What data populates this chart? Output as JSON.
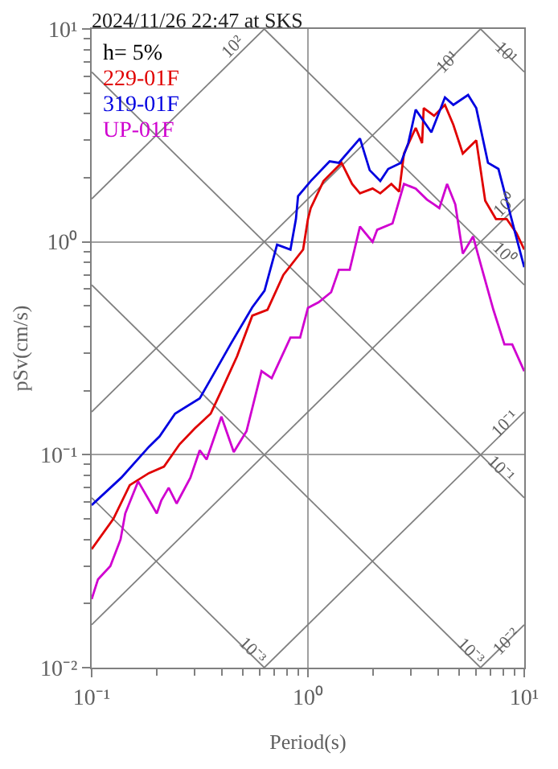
{
  "chart_data": {
    "type": "line",
    "title": "2024/11/26 22:47 at SKS",
    "xlabel": "Period(s)",
    "ylabel": "pSv(cm/s)",
    "log": "xy",
    "grid": true,
    "legend": "top left",
    "xlim": [
      0.1,
      10
    ],
    "ylim": [
      0.01,
      10
    ],
    "xticks": [
      {
        "value": 0.1,
        "label": "10⁻¹"
      },
      {
        "value": 1,
        "label": "10⁰"
      },
      {
        "value": 10,
        "label": "10¹"
      }
    ],
    "yticks": [
      {
        "value": 0.01,
        "label": "10⁻²"
      },
      {
        "value": 0.1,
        "label": "10⁻¹"
      },
      {
        "value": 1,
        "label": "10⁰"
      },
      {
        "value": 10,
        "label": "10¹"
      }
    ],
    "series": [
      {
        "color": "#808080",
        "x": [
          6.28,
          10
        ],
        "values": [
          10,
          6.28
        ]
      },
      {
        "color": "#808080",
        "x": [
          0.628,
          10
        ],
        "values": [
          10,
          0.628
        ]
      },
      {
        "color": "#808080",
        "x": [
          0.1,
          10
        ],
        "values": [
          6.28,
          0.0628
        ]
      },
      {
        "color": "#808080",
        "x": [
          0.1,
          6.28
        ],
        "values": [
          0.628,
          0.01
        ]
      },
      {
        "color": "#808080",
        "x": [
          0.1,
          0.628
        ],
        "values": [
          0.0628,
          0.01
        ]
      },
      {
        "color": "#808080",
        "x": [
          0.1,
          0.628
        ],
        "values": [
          1.59,
          10
        ]
      },
      {
        "color": "#808080",
        "x": [
          0.1,
          6.28
        ],
        "values": [
          0.159,
          10
        ]
      },
      {
        "color": "#808080",
        "x": [
          0.1,
          10
        ],
        "values": [
          0.0159,
          1.59
        ]
      },
      {
        "color": "#808080",
        "x": [
          0.628,
          10
        ],
        "values": [
          0.01,
          0.159
        ]
      },
      {
        "color": "#808080",
        "x": [
          6.28,
          10
        ],
        "values": [
          0.01,
          0.0159
        ]
      },
      {
        "name": "229-01F",
        "color": "#e00000",
        "x": [
          0.1,
          0.126,
          0.15,
          0.184,
          0.216,
          0.255,
          0.3,
          0.355,
          0.398,
          0.47,
          0.553,
          0.65,
          0.77,
          0.95,
          1.0,
          1.03,
          1.18,
          1.43,
          1.6,
          1.74,
          1.99,
          2.16,
          2.43,
          2.64,
          2.78,
          3.15,
          3.37,
          3.43,
          3.83,
          4.3,
          4.7,
          5.2,
          6.0,
          6.6,
          7.4,
          8.3,
          9.2,
          10
        ],
        "values": [
          0.036,
          0.05,
          0.072,
          0.082,
          0.088,
          0.112,
          0.133,
          0.156,
          0.2,
          0.29,
          0.45,
          0.48,
          0.7,
          0.92,
          1.28,
          1.44,
          1.93,
          2.35,
          1.87,
          1.69,
          1.78,
          1.69,
          1.87,
          1.72,
          2.6,
          3.43,
          2.91,
          4.25,
          3.91,
          4.4,
          3.55,
          2.6,
          3.0,
          1.56,
          1.28,
          1.28,
          1.1,
          0.92
        ]
      },
      {
        "name": "319-01F",
        "color": "#0000e0",
        "x": [
          0.1,
          0.137,
          0.184,
          0.206,
          0.243,
          0.316,
          0.373,
          0.44,
          0.553,
          0.63,
          0.72,
          0.83,
          0.88,
          0.9,
          1.03,
          1.26,
          1.39,
          1.74,
          1.93,
          2.16,
          2.35,
          2.69,
          2.91,
          3.15,
          3.72,
          4.3,
          4.7,
          5.5,
          6.0,
          6.8,
          7.6,
          9.0,
          10
        ],
        "values": [
          0.058,
          0.078,
          0.109,
          0.122,
          0.156,
          0.184,
          0.247,
          0.332,
          0.493,
          0.59,
          0.97,
          0.92,
          1.28,
          1.64,
          1.93,
          2.39,
          2.35,
          3.06,
          2.17,
          1.93,
          2.2,
          2.35,
          2.91,
          4.18,
          3.27,
          4.77,
          4.4,
          4.9,
          4.25,
          2.35,
          2.2,
          1.14,
          0.76
        ]
      },
      {
        "name": "UP-01F",
        "color": "#d000d0",
        "x": [
          0.1,
          0.107,
          0.122,
          0.136,
          0.143,
          0.164,
          0.2,
          0.21,
          0.227,
          0.247,
          0.286,
          0.316,
          0.34,
          0.398,
          0.454,
          0.52,
          0.61,
          0.68,
          0.83,
          0.92,
          1.0,
          1.12,
          1.28,
          1.39,
          1.56,
          1.74,
          1.99,
          2.09,
          2.46,
          2.78,
          3.15,
          3.55,
          3.83,
          4.05,
          4.4,
          4.8,
          5.2,
          5.8,
          6.3,
          7.2,
          8.1,
          8.8,
          10
        ],
        "values": [
          0.021,
          0.026,
          0.03,
          0.04,
          0.053,
          0.075,
          0.053,
          0.061,
          0.07,
          0.059,
          0.078,
          0.105,
          0.095,
          0.151,
          0.103,
          0.129,
          0.247,
          0.229,
          0.355,
          0.355,
          0.49,
          0.52,
          0.58,
          0.74,
          0.74,
          1.18,
          1.0,
          1.14,
          1.22,
          1.87,
          1.78,
          1.58,
          1.5,
          1.44,
          1.87,
          1.5,
          0.88,
          1.06,
          0.78,
          0.48,
          0.33,
          0.33,
          0.247
        ]
      }
    ],
    "annotations": [
      "h= 5%",
      {
        "text": "10²",
        "x": 0.454,
        "y": 8.2
      },
      {
        "text": "10¹",
        "x": 4.4,
        "y": 7.0
      },
      {
        "text": "10¹",
        "x": 8.2,
        "y": 7.66
      },
      {
        "text": "10⁰",
        "x": 8.1,
        "y": 1.5
      },
      {
        "text": "10⁰",
        "x": 8.1,
        "y": 0.88
      },
      {
        "text": "10⁻¹",
        "x": 8.1,
        "y": 0.139
      },
      {
        "text": "10⁻¹",
        "x": 7.8,
        "y": 0.085
      },
      {
        "text": "10⁻³",
        "x": 0.553,
        "y": 0.0118
      },
      {
        "text": "10⁻³",
        "x": 5.6,
        "y": 0.0118
      },
      {
        "text": "10⁻²",
        "x": 8.3,
        "y": 0.0132
      }
    ]
  }
}
